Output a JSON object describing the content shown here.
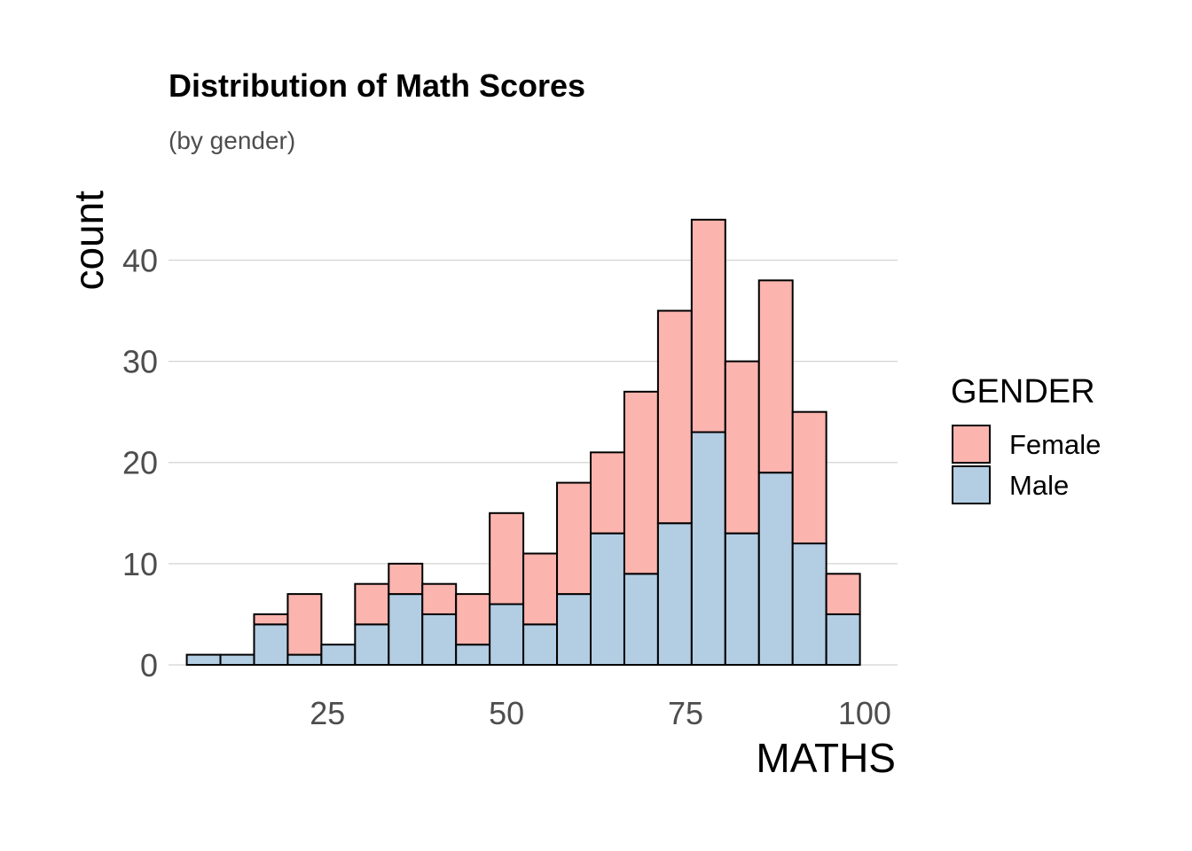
{
  "chart_data": {
    "type": "bar",
    "stacked": true,
    "histogram": true,
    "title": "Distribution of Math Scores",
    "subtitle": "(by gender)",
    "xlabel": "MATHS",
    "ylabel": "count",
    "x_ticks": [
      25,
      50,
      75,
      100
    ],
    "y_ticks": [
      0,
      10,
      20,
      30,
      40
    ],
    "xlim": [
      2.8,
      104.6
    ],
    "ylim": [
      0,
      46
    ],
    "bin_width": 4.7,
    "bin_centers": [
      7.7,
      12.4,
      17.1,
      21.8,
      26.5,
      31.2,
      35.9,
      40.6,
      45.3,
      50.0,
      54.7,
      59.4,
      64.1,
      68.8,
      73.5,
      78.2,
      82.9,
      87.6,
      92.3,
      97.0
    ],
    "grid": true,
    "legend": {
      "title": "GENDER",
      "position": "right"
    },
    "series": [
      {
        "name": "Male",
        "color": "#b3cde3",
        "values": [
          1,
          1,
          4,
          1,
          2,
          4,
          7,
          5,
          2,
          6,
          4,
          7,
          13,
          9,
          14,
          23,
          13,
          19,
          12,
          5
        ]
      },
      {
        "name": "Female",
        "color": "#fbb4ae",
        "values": [
          0,
          0,
          1,
          6,
          0,
          4,
          3,
          3,
          5,
          9,
          7,
          11,
          8,
          18,
          21,
          21,
          17,
          19,
          13,
          4
        ]
      }
    ]
  }
}
